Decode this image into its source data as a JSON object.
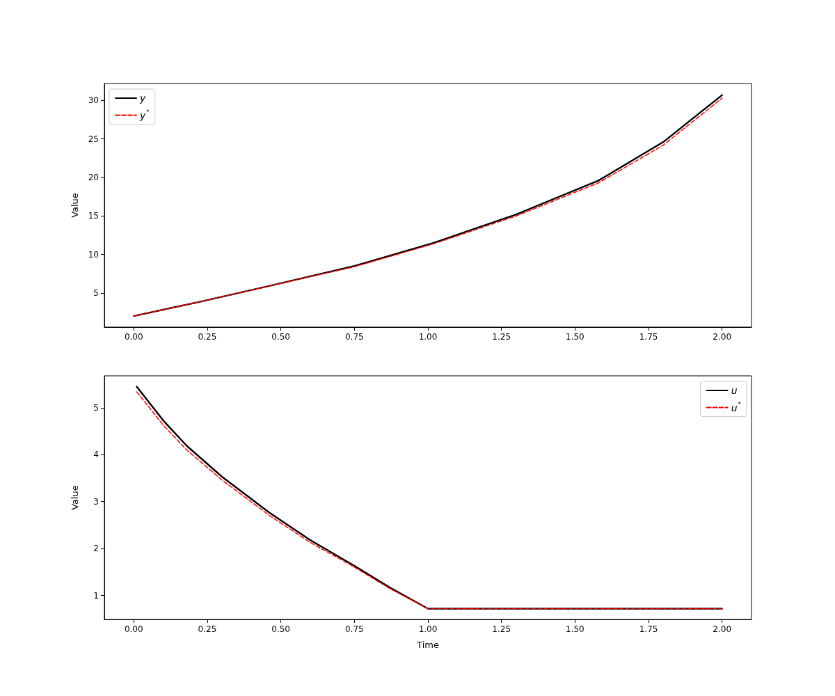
{
  "chart_data": [
    {
      "type": "line",
      "ylabel": "Value",
      "xlim": [
        -0.1,
        2.1
      ],
      "ylim": [
        0.56,
        32.2
      ],
      "xticks": [
        {
          "value": 0,
          "label": "0.00"
        },
        {
          "value": 0.25,
          "label": "0.25"
        },
        {
          "value": 0.5,
          "label": "0.50"
        },
        {
          "value": 0.75,
          "label": "0.75"
        },
        {
          "value": 1,
          "label": "1.00"
        },
        {
          "value": 1.25,
          "label": "1.25"
        },
        {
          "value": 1.5,
          "label": "1.50"
        },
        {
          "value": 1.75,
          "label": "1.75"
        },
        {
          "value": 2,
          "label": "2.00"
        }
      ],
      "yticks": [
        5,
        10,
        15,
        20,
        25,
        30
      ],
      "grid": false,
      "legend": "top left",
      "marker": "none",
      "x": [
        0,
        0.23,
        0.46,
        0.75,
        1.02,
        1.3,
        1.58,
        1.8,
        2.0
      ],
      "series": [
        {
          "name": "y",
          "color": "#000000",
          "line_style": "solid",
          "values": [
            2.0,
            3.9,
            5.9,
            8.5,
            11.5,
            15.2,
            19.6,
            24.6,
            30.7
          ]
        },
        {
          "name": "y$^{*}$",
          "color": "#ff0000",
          "line_style": "dashed",
          "values": [
            2.0,
            3.9,
            5.9,
            8.4,
            11.4,
            15.0,
            19.3,
            24.2,
            30.3
          ]
        }
      ]
    },
    {
      "type": "line",
      "xlabel": "Time",
      "ylabel": "Value",
      "xlim": [
        -0.1,
        2.1
      ],
      "ylim": [
        0.49,
        5.68
      ],
      "xticks": [
        {
          "value": 0,
          "label": "0.00"
        },
        {
          "value": 0.25,
          "label": "0.25"
        },
        {
          "value": 0.5,
          "label": "0.50"
        },
        {
          "value": 0.75,
          "label": "0.75"
        },
        {
          "value": 1,
          "label": "1.00"
        },
        {
          "value": 1.25,
          "label": "1.25"
        },
        {
          "value": 1.5,
          "label": "1.50"
        },
        {
          "value": 1.75,
          "label": "1.75"
        },
        {
          "value": 2,
          "label": "2.00"
        }
      ],
      "yticks": [
        1,
        2,
        3,
        4,
        5
      ],
      "grid": false,
      "legend": "top right",
      "marker": "none",
      "x": [
        0.01,
        0.1,
        0.18,
        0.3,
        0.46,
        0.6,
        0.74,
        0.87,
        1.0,
        1.5,
        2.0
      ],
      "series": [
        {
          "name": "u",
          "color": "#000000",
          "line_style": "solid",
          "values": [
            5.45,
            4.73,
            4.19,
            3.53,
            2.77,
            2.18,
            1.67,
            1.17,
            0.72,
            0.72,
            0.72
          ]
        },
        {
          "name": "u$^{*}$",
          "color": "#ff0000",
          "line_style": "dashed",
          "values": [
            5.34,
            4.63,
            4.1,
            3.46,
            2.71,
            2.13,
            1.64,
            1.15,
            0.72,
            0.72,
            0.72
          ]
        }
      ]
    }
  ]
}
